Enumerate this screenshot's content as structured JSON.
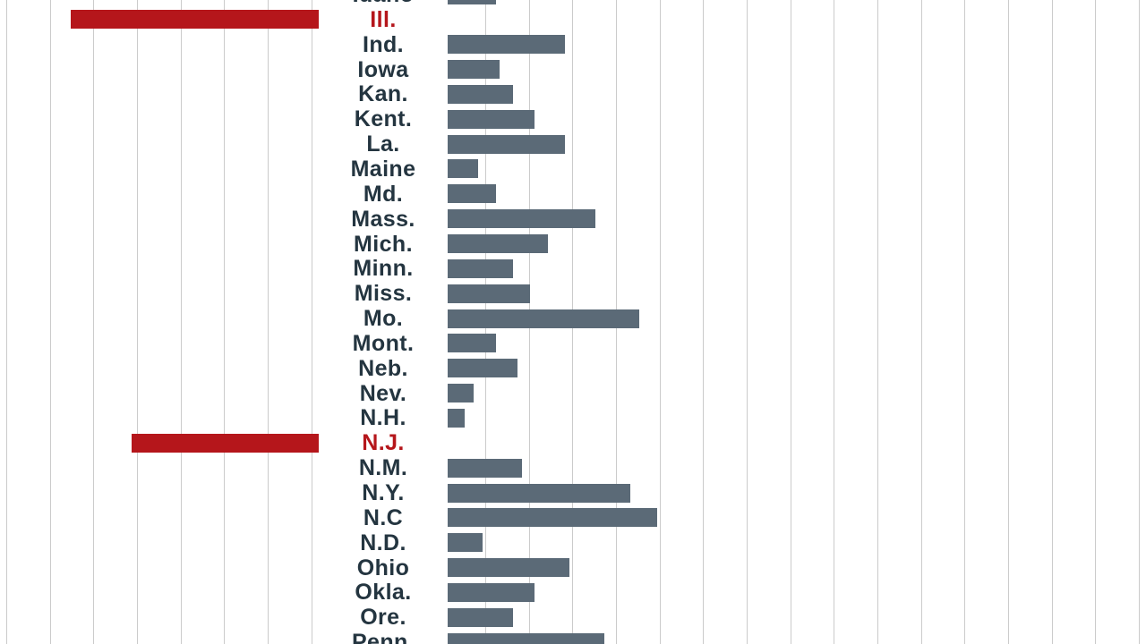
{
  "chart_data": {
    "type": "bar",
    "orientation": "horizontal-diverging",
    "title": "",
    "xlabel": "",
    "ylabel": "",
    "legend": "none",
    "grid": "vertical light-gray gridlines across full canvas, no tick labels visible",
    "value_unit": "gridline-units (no numeric axis labels visible in cropped view; values estimated from gridline spacing)",
    "categories": [
      "Idaho",
      "Ill.",
      "Ind.",
      "Iowa",
      "Kan.",
      "Kent.",
      "La.",
      "Maine",
      "Md.",
      "Mass.",
      "Mich.",
      "Minn.",
      "Miss.",
      "Mo.",
      "Mont.",
      "Neb.",
      "Nev.",
      "N.H.",
      "N.J.",
      "N.M.",
      "N.Y.",
      "N.C",
      "N.D.",
      "Ohio",
      "Okla.",
      "Ore.",
      "Penn."
    ],
    "values": [
      1.1,
      -5.7,
      2.7,
      1.2,
      1.5,
      2.0,
      2.7,
      0.7,
      1.1,
      3.4,
      2.3,
      1.5,
      1.9,
      4.4,
      1.1,
      1.6,
      0.6,
      0.4,
      -4.3,
      1.7,
      4.2,
      4.8,
      0.8,
      2.8,
      2.0,
      1.5,
      3.6
    ],
    "highlighted_negative_categories": [
      "Ill.",
      "N.J."
    ],
    "bar_color": "#5b6a77",
    "negative_bar_color": "#b5161b",
    "label_color": "#243540",
    "gridline_color": "#cbcbcb",
    "notes": "Top row (Idaho) and bottom row (Penn.) are partially cut off by the viewport; red bars extend left of the label column, gray bars extend right."
  }
}
